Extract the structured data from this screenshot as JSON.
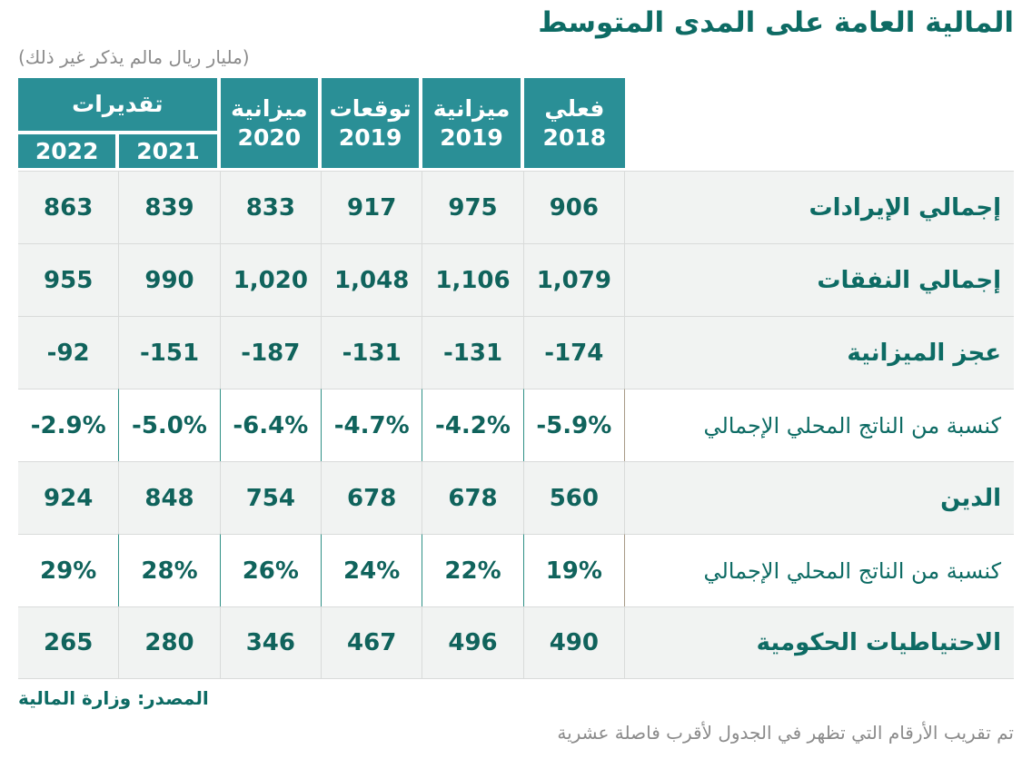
{
  "page": {
    "title": "المالية العامة على المدى المتوسط",
    "subtitle": "(مليار ريال مالم يذكر غير ذلك)",
    "source": "المصدر: وزارة المالية",
    "footnote": "تم تقريب الأرقام التي تظهر في الجدول لأقرب فاصلة عشرية"
  },
  "colors": {
    "header_teal": "#2a8f96",
    "title_teal": "#0d6b64",
    "value_teal": "#10635c",
    "row_gray": "#f1f3f2",
    "separator_gray": "#d9dbda",
    "separator_teal": "#2f9086",
    "separator_tan": "#a89b87",
    "muted_gray": "#8b8b8b"
  },
  "chart_data": {
    "type": "table",
    "direction": "rtl",
    "units": "مليار ريال",
    "header": {
      "columns": [
        {
          "label": "فعلي",
          "sub": "2018"
        },
        {
          "label": "ميزانية",
          "sub": "2019"
        },
        {
          "label": "توقعات",
          "sub": "2019"
        },
        {
          "label": "ميزانية",
          "sub": "2020"
        }
      ],
      "estimates": {
        "label": "تقديرات",
        "years": [
          "2021",
          "2022"
        ]
      }
    },
    "rows": [
      {
        "label": "إجمالي الإيرادات",
        "style": "normal",
        "values": [
          "906",
          "975",
          "917",
          "833",
          "839",
          "863"
        ]
      },
      {
        "label": "إجمالي النفقات",
        "style": "normal",
        "values": [
          "1,079",
          "1,106",
          "1,048",
          "1,020",
          "990",
          "955"
        ]
      },
      {
        "label": "عجز الميزانية",
        "style": "normal",
        "values": [
          "-174",
          "-131",
          "-131",
          "-187",
          "-151",
          "-92"
        ]
      },
      {
        "label": "كنسبة من الناتج المحلي الإجمالي",
        "style": "percent",
        "values": [
          "-5.9%",
          "-4.2%",
          "-4.7%",
          "-6.4%",
          "-5.0%",
          "-2.9%"
        ]
      },
      {
        "label": "الدين",
        "style": "normal",
        "values": [
          "560",
          "678",
          "678",
          "754",
          "848",
          "924"
        ]
      },
      {
        "label": "كنسبة من الناتج المحلي الإجمالي",
        "style": "percent",
        "values": [
          "19%",
          "22%",
          "24%",
          "26%",
          "28%",
          "29%"
        ]
      },
      {
        "label": "الاحتياطيات الحكومية",
        "style": "normal",
        "values": [
          "490",
          "496",
          "467",
          "346",
          "280",
          "265"
        ]
      }
    ]
  }
}
